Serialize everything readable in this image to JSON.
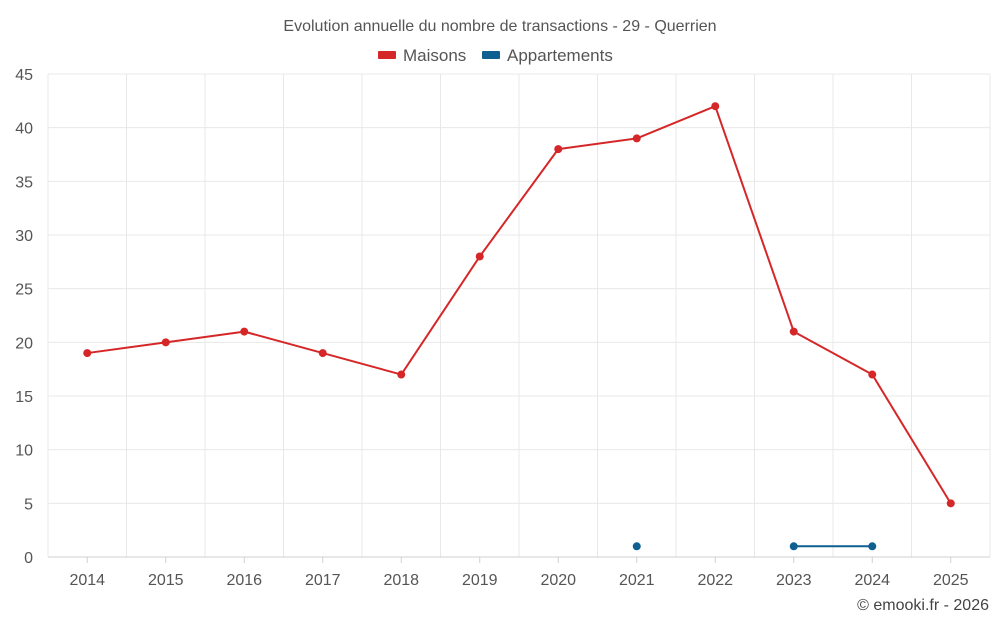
{
  "chart_data": {
    "type": "line",
    "title": "Evolution annuelle du nombre de transactions - 29 - Querrien",
    "categories": [
      "2014",
      "2015",
      "2016",
      "2017",
      "2018",
      "2019",
      "2020",
      "2021",
      "2022",
      "2023",
      "2024",
      "2025"
    ],
    "series": [
      {
        "name": "Maisons",
        "color": "#d62728",
        "values": [
          19,
          20,
          21,
          19,
          17,
          28,
          38,
          39,
          42,
          21,
          17,
          5
        ]
      },
      {
        "name": "Appartements",
        "color": "#0f5f91",
        "values": [
          null,
          null,
          null,
          null,
          null,
          null,
          null,
          1,
          null,
          1,
          1,
          null
        ]
      }
    ],
    "ylim": [
      0,
      45
    ],
    "yticks": [
      0,
      5,
      10,
      15,
      20,
      25,
      30,
      35,
      40,
      45
    ],
    "grid": true,
    "legend_position": "top-center",
    "xlabel": "",
    "ylabel": ""
  },
  "credit": "© emooki.fr - 2026"
}
